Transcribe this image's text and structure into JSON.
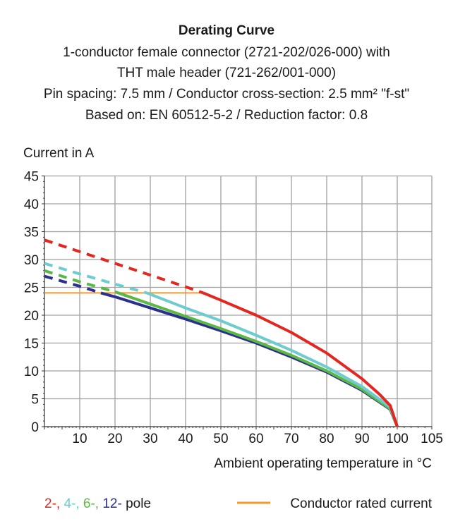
{
  "chart_data": {
    "type": "line",
    "title": "Derating Curve",
    "subtitle_lines": [
      "1-conductor female connector (2721-202/026-000) with",
      "THT male header (721-262/001-000)",
      "Pin spacing: 7.5 mm / Conductor cross-section: 2.5 mm² \"f-st\"",
      "Based on: EN 60512-5-2 / Reduction factor: 0.8"
    ],
    "ylabel": "Current in A",
    "xlabel": "Ambient operating temperature in °C",
    "xlim": [
      0,
      105
    ],
    "ylim": [
      0,
      45
    ],
    "xticks": [
      10,
      20,
      30,
      40,
      50,
      60,
      70,
      80,
      90,
      100,
      105
    ],
    "yticks": [
      0,
      5,
      10,
      15,
      20,
      25,
      30,
      35,
      40,
      45
    ],
    "grid": true,
    "series": [
      {
        "name": "2-",
        "color": "#e3261f",
        "dashed_until": 45,
        "points": [
          [
            0,
            33.5
          ],
          [
            10,
            31.4
          ],
          [
            20,
            29.3
          ],
          [
            30,
            27.2
          ],
          [
            40,
            25.1
          ],
          [
            45,
            24
          ],
          [
            50,
            22.7
          ],
          [
            60,
            20
          ],
          [
            70,
            16.9
          ],
          [
            80,
            13.2
          ],
          [
            90,
            8.6
          ],
          [
            95,
            5.8
          ],
          [
            98,
            3.8
          ],
          [
            100,
            0
          ]
        ]
      },
      {
        "name": "4-",
        "color": "#6ecbd0",
        "dashed_until": 29,
        "points": [
          [
            0,
            29.3
          ],
          [
            10,
            27.4
          ],
          [
            20,
            25.6
          ],
          [
            29,
            24
          ],
          [
            40,
            21.3
          ],
          [
            50,
            19
          ],
          [
            60,
            16.4
          ],
          [
            70,
            13.7
          ],
          [
            80,
            10.7
          ],
          [
            90,
            7.2
          ],
          [
            98,
            3.5
          ],
          [
            100,
            0
          ]
        ]
      },
      {
        "name": "6-",
        "color": "#5cb846",
        "dashed_until": 20,
        "points": [
          [
            0,
            28
          ],
          [
            10,
            26
          ],
          [
            20,
            24.2
          ],
          [
            30,
            22
          ],
          [
            40,
            19.8
          ],
          [
            50,
            17.6
          ],
          [
            60,
            15.3
          ],
          [
            70,
            12.8
          ],
          [
            80,
            10
          ],
          [
            90,
            6.7
          ],
          [
            98,
            3.2
          ],
          [
            100,
            0
          ]
        ]
      },
      {
        "name": "12-",
        "color": "#2b2f8f",
        "dashed_until": 16,
        "points": [
          [
            0,
            27
          ],
          [
            10,
            25.2
          ],
          [
            16,
            24
          ],
          [
            20,
            23.3
          ],
          [
            30,
            21.3
          ],
          [
            40,
            19.3
          ],
          [
            50,
            17.2
          ],
          [
            60,
            15
          ],
          [
            70,
            12.5
          ],
          [
            80,
            9.8
          ],
          [
            90,
            6.5
          ],
          [
            98,
            3.1
          ],
          [
            100,
            0
          ]
        ]
      }
    ],
    "rated_current": {
      "name": "Conductor rated current",
      "color": "#f39a2b",
      "value": 24,
      "x_range": [
        0,
        45
      ]
    },
    "legend": {
      "pole_suffix": "pole",
      "placement": "bottom"
    }
  }
}
